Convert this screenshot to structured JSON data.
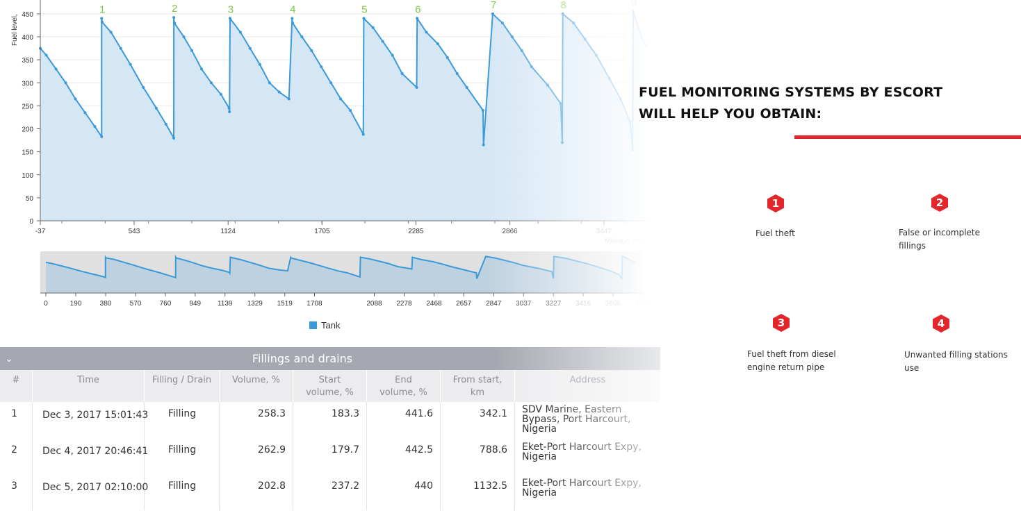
{
  "chart": {
    "y_axis_label": "Fuel level,",
    "x_axis_label": "Mileage, km",
    "legend_label": "Tank",
    "series_color": "#3a9ad9",
    "fill_color": "#d3e5f4",
    "peak_label_color": "#7ac943"
  },
  "chart_data": {
    "type": "area",
    "title": "",
    "ylabel": "Fuel level,",
    "xlabel": "Mileage, km",
    "ylim": [
      0,
      480
    ],
    "y_ticks": [
      0,
      50,
      100,
      150,
      200,
      250,
      300,
      350,
      400,
      450
    ],
    "x_tick_labels": [
      "-37",
      "543",
      "1124",
      "1705",
      "2285",
      "2866",
      "3447"
    ],
    "xlim": [
      -37,
      3710
    ],
    "legend": [
      "Tank"
    ],
    "refuel_labels": [
      "1",
      "2",
      "3",
      "4",
      "5",
      "6",
      "7",
      "8",
      "9"
    ],
    "series": [
      {
        "name": "Tank",
        "x": [
          -37,
          0,
          60,
          120,
          180,
          240,
          300,
          342,
          342.1,
          345,
          400,
          460,
          520,
          600,
          680,
          740,
          788,
          788.6,
          792,
          850,
          900,
          960,
          1020,
          1080,
          1130,
          1132.5,
          1136,
          1200,
          1260,
          1320,
          1380,
          1440,
          1500,
          1520,
          1523,
          1580,
          1640,
          1700,
          1760,
          1820,
          1880,
          1960,
          1963,
          2020,
          2080,
          2140,
          2200,
          2290,
          2293,
          2350,
          2420,
          2480,
          2540,
          2600,
          2700,
          2703,
          2760,
          2820,
          2880,
          2940,
          3000,
          3100,
          3180,
          3190,
          3193,
          3260,
          3330,
          3400,
          3480,
          3550,
          3610,
          3625,
          3628,
          3680,
          3710
        ],
        "y": [
          375,
          360,
          330,
          300,
          265,
          235,
          205,
          183,
          440,
          432,
          410,
          375,
          340,
          290,
          245,
          210,
          180,
          442,
          430,
          400,
          370,
          330,
          300,
          275,
          245,
          237,
          440,
          410,
          375,
          340,
          300,
          280,
          265,
          440,
          430,
          400,
          370,
          335,
          300,
          265,
          240,
          188,
          440,
          420,
          390,
          360,
          320,
          290,
          440,
          410,
          385,
          355,
          320,
          290,
          240,
          165,
          450,
          430,
          400,
          370,
          335,
          295,
          255,
          170,
          450,
          430,
          395,
          360,
          310,
          265,
          215,
          155,
          455,
          400,
          380
        ]
      }
    ]
  },
  "navigator": {
    "tick_labels": [
      "0",
      "190",
      "380",
      "570",
      "760",
      "949",
      "1139",
      "1329",
      "1519",
      "1708",
      "2088",
      "2278",
      "2468",
      "2657",
      "2847",
      "3037",
      "3227",
      "3416",
      "3606",
      "3796"
    ]
  },
  "table": {
    "title": "Fillings and drains",
    "columns": [
      "#",
      "Time",
      "Filling / Drain",
      "Volume, %",
      "Start volume, %",
      "End volume, %",
      "From start, km",
      "Address"
    ],
    "rows": [
      {
        "num": "1",
        "time": "Dec 3, 2017 15:01:43",
        "type": "Filling",
        "volume": "258.3",
        "start": "183.3",
        "end": "441.6",
        "from_start": "342.1",
        "address": "SDV Marine, Eastern Bypass, Port Harcourt, Nigeria"
      },
      {
        "num": "2",
        "time": "Dec 4, 2017 20:46:41",
        "type": "Filling",
        "volume": "262.9",
        "start": "179.7",
        "end": "442.5",
        "from_start": "788.6",
        "address": "Eket-Port Harcourt Expy, Nigeria"
      },
      {
        "num": "3",
        "time": "Dec 5, 2017 02:10:00",
        "type": "Filling",
        "volume": "202.8",
        "start": "237.2",
        "end": "440",
        "from_start": "1132.5",
        "address": "Eket-Port Harcourt Expy, Nigeria"
      }
    ]
  },
  "info": {
    "title_line1": "FUEL MONITORING SYSTEMS BY ESCORT",
    "title_line2": "WILL HELP YOU OBTAIN:",
    "accent_color": "#e3262b",
    "features": [
      {
        "num": "1",
        "text": "Fuel theft"
      },
      {
        "num": "2",
        "text": "False or incomplete fillings"
      },
      {
        "num": "3",
        "text": "Fuel theft from diesel engine return pipe"
      },
      {
        "num": "4",
        "text": "Unwanted filling stations use"
      }
    ]
  }
}
